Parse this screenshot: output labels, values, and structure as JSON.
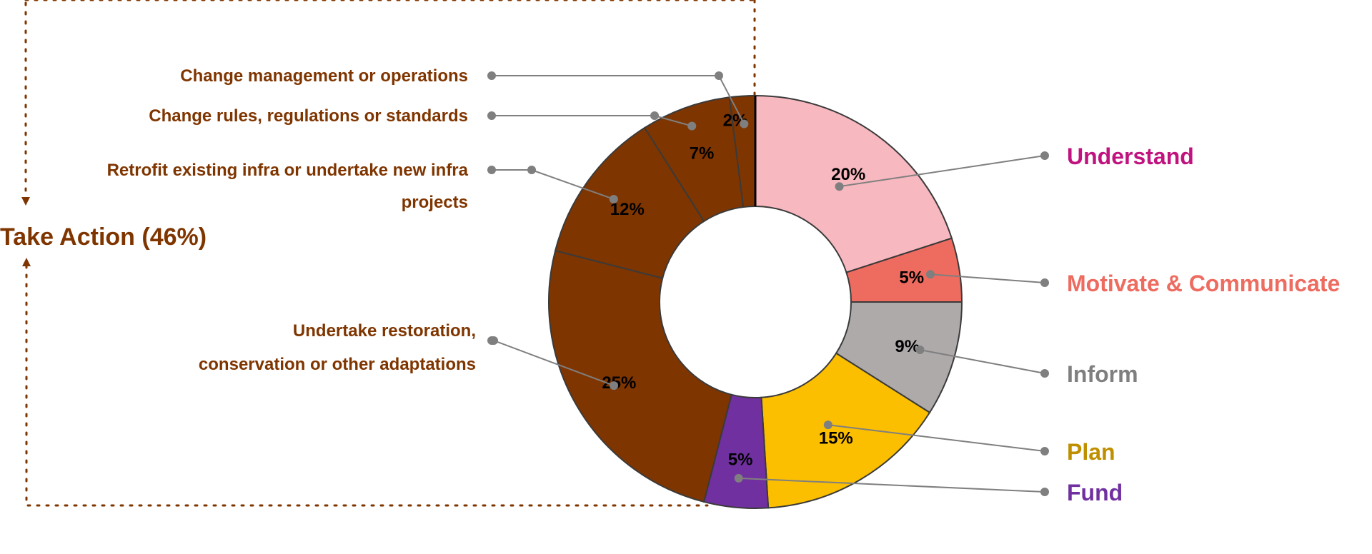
{
  "chart_data": {
    "type": "pie",
    "variant": "donut",
    "segments": [
      {
        "label": "Understand",
        "value": 20,
        "value_label": "20%",
        "color": "#f8b8c0",
        "legend_color": "#c0137f"
      },
      {
        "label": "Motivate & Communicate",
        "value": 5,
        "value_label": "5%",
        "color": "#ee6b60",
        "legend_color": "#ee6b60"
      },
      {
        "label": "Inform",
        "value": 9,
        "value_label": "9%",
        "color": "#aeaaaa",
        "legend_color": "#7f7f7f"
      },
      {
        "label": "Plan",
        "value": 15,
        "value_label": "15%",
        "color": "#fcbf00",
        "legend_color": "#bf8f00"
      },
      {
        "label": "Fund",
        "value": 5,
        "value_label": "5%",
        "color": "#7030a0",
        "legend_color": "#7030a0"
      },
      {
        "label": "Undertake restoration, conservation or other adaptations",
        "label_lines": [
          "Undertake restoration,",
          "conservation or other adaptations"
        ],
        "value": 25,
        "value_label": "25%",
        "color": "#7f3500",
        "legend_color": "#7f3500"
      },
      {
        "label": "Retrofit existing infra or undertake new infra projects",
        "label_lines": [
          "Retrofit existing infra or undertake new infra",
          "projects"
        ],
        "value": 12,
        "value_label": "12%",
        "color": "#7f3500",
        "legend_color": "#7f3500"
      },
      {
        "label": "Change rules, regulations or standards",
        "label_lines": [
          "Change rules, regulations or standards"
        ],
        "value": 7,
        "value_label": "7%",
        "color": "#7f3500",
        "legend_color": "#7f3500"
      },
      {
        "label": "Change management or operations",
        "label_lines": [
          "Change management or operations"
        ],
        "value": 2,
        "value_label": "2%",
        "color": "#7f3500",
        "legend_color": "#7f3500"
      }
    ],
    "group": {
      "label": "Take Action (46%)",
      "color": "#7f3500"
    }
  }
}
